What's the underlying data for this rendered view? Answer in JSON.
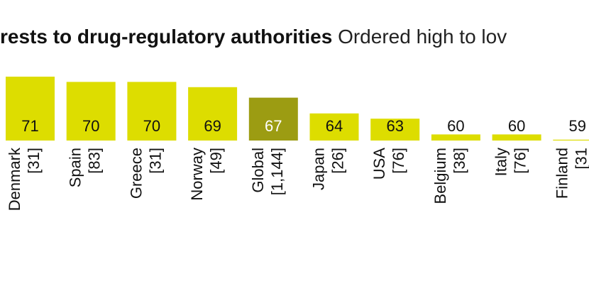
{
  "chart_data": {
    "type": "bar",
    "title": "rests to drug-regulatory authorities",
    "subtitle": "Ordered high to lov",
    "categories": [
      "Denmark",
      "Spain",
      "Greece",
      "Norway",
      "Global",
      "Japan",
      "USA",
      "Belgium",
      "Italy",
      "Finland"
    ],
    "counts": [
      "[31]",
      "[83]",
      "[31]",
      "[49]",
      "[1,144]",
      "[26]",
      "[76]",
      "[38]",
      "[76]",
      "[31"
    ],
    "values": [
      71,
      70,
      70,
      69,
      67,
      64,
      63,
      60,
      60,
      59
    ],
    "highlight_category": "Global",
    "colors": {
      "bar": "#dddd00",
      "highlight": "#9c9c12",
      "label": "#111111",
      "highlight_label": "#ffffff"
    },
    "grid": false,
    "legend": "none"
  }
}
